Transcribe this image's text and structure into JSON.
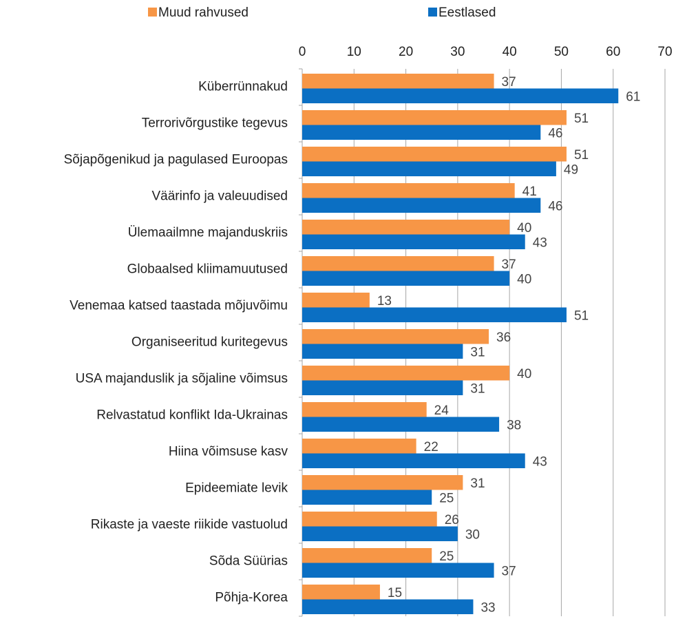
{
  "chart_data": {
    "type": "bar",
    "orientation": "horizontal",
    "categories": [
      "Küberrünnakud",
      "Terrorivõrgustike tegevus",
      "Sõjapõgenikud ja pagulased Euroopas",
      "Väärinfo ja valeuudised",
      "Ülemaailmne majanduskriis",
      "Globaalsed kliimamuutused",
      "Venemaa katsed taastada mõjuvõimu",
      "Organiseeritud kuritegevus",
      "USA majanduslik ja sõjaline võimsus",
      "Relvastatud konflikt Ida-Ukrainas",
      "Hiina võimsuse kasv",
      "Epideemiate levik",
      "Rikaste ja vaeste riikide vastuolud",
      "Sõda Süürias",
      "Põhja-Korea"
    ],
    "series": [
      {
        "name": "Muud rahvused",
        "color": "#F79646",
        "values": [
          37,
          51,
          51,
          41,
          40,
          37,
          13,
          36,
          40,
          24,
          22,
          31,
          26,
          25,
          15
        ]
      },
      {
        "name": "Eestlased",
        "color": "#0B6FC3",
        "values": [
          61,
          46,
          49,
          46,
          43,
          40,
          51,
          31,
          31,
          38,
          43,
          25,
          30,
          37,
          33
        ]
      }
    ],
    "xlim": [
      0,
      70
    ],
    "xticks": [
      0,
      10,
      20,
      30,
      40,
      50,
      60,
      70
    ],
    "grid": true,
    "legend": "top"
  }
}
